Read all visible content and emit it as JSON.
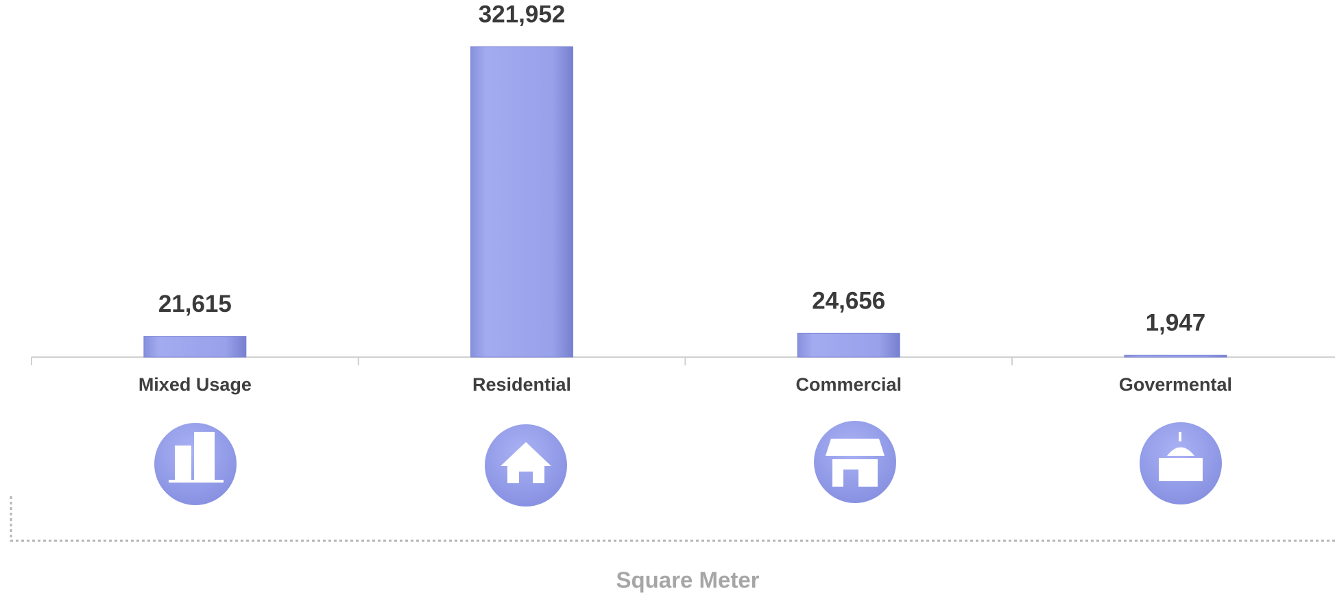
{
  "chart_data": {
    "type": "bar",
    "categories": [
      "Mixed Usage",
      "Residential",
      "Commercial",
      "Govermental"
    ],
    "values": [
      21615,
      321952,
      24656,
      1947
    ],
    "value_labels": [
      "21,615",
      "321,952",
      "24,656",
      "1,947"
    ],
    "color": "#9aa3ea",
    "x_label": "Square Meter"
  }
}
